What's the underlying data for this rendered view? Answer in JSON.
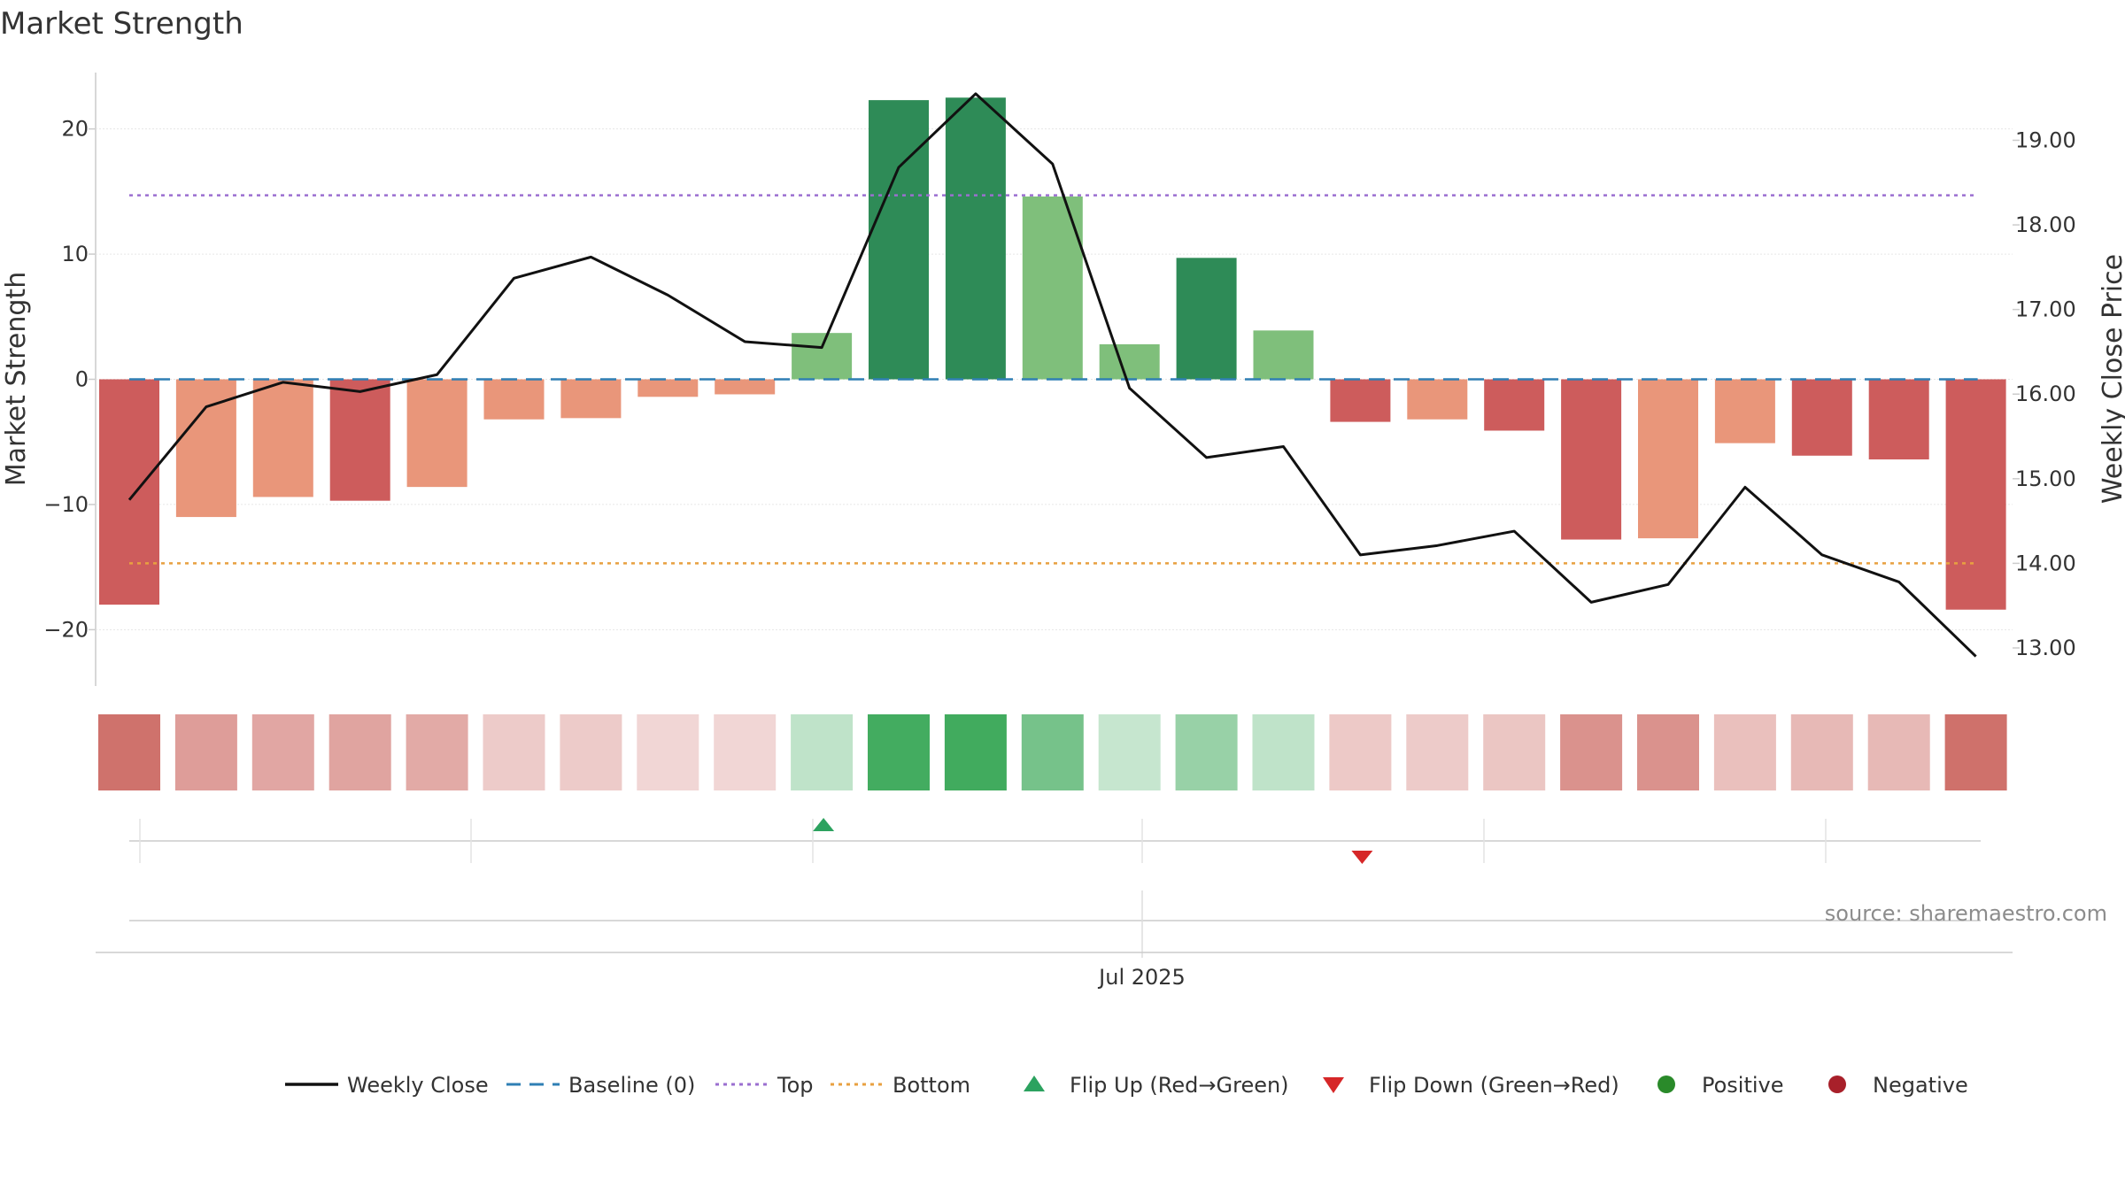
{
  "chart_data": {
    "type": "bar",
    "title": "Market Strength",
    "ylabel_left": "Market Strength",
    "ylabel_right": "Weekly Close Price",
    "source": "source: sharemaestro.com",
    "x_tick_label": "Jul 2025",
    "ylim_left": [
      -24.5,
      24.5
    ],
    "ylim_right": [
      12.55,
      19.8
    ],
    "left_ticks": [
      20,
      10,
      0,
      -10,
      -20
    ],
    "left_tick_labels": [
      "20",
      "10",
      "0",
      "−10",
      "−20"
    ],
    "right_ticks": [
      19,
      18,
      17,
      16,
      15,
      14,
      13
    ],
    "right_tick_labels": [
      "19.00",
      "18.00",
      "17.00",
      "16.00",
      "15.00",
      "14.00",
      "13.00"
    ],
    "top_level": 14.7,
    "bottom_level": -14.7,
    "baseline": 0,
    "strength_values": [
      -18.0,
      -11.0,
      -9.4,
      -9.7,
      -8.6,
      -3.2,
      -3.1,
      -1.4,
      -1.2,
      3.7,
      22.3,
      22.5,
      14.6,
      2.8,
      9.7,
      3.9,
      -3.4,
      -3.2,
      -4.1,
      -12.8,
      -12.7,
      -5.1,
      -6.1,
      -6.4,
      -18.4
    ],
    "close_prices": [
      14.75,
      15.85,
      16.14,
      16.03,
      16.23,
      17.37,
      17.62,
      17.17,
      16.62,
      16.55,
      18.68,
      19.55,
      18.72,
      16.07,
      15.25,
      15.38,
      14.1,
      14.21,
      14.38,
      13.54,
      13.75,
      14.9,
      14.1,
      13.78,
      12.9
    ],
    "flip_up_index": 9,
    "flip_down_index": 16,
    "legend": [
      {
        "type": "line",
        "label": "Weekly Close",
        "color": "#111111"
      },
      {
        "type": "dash",
        "label": "Baseline (0)",
        "color": "#2f7fb4"
      },
      {
        "type": "dot",
        "label": "Top",
        "color": "#9b6fd0"
      },
      {
        "type": "dot",
        "label": "Bottom",
        "color": "#e8a040"
      },
      {
        "type": "tri-up",
        "label": "Flip Up (Red→Green)",
        "color": "#2ca25f"
      },
      {
        "type": "tri-down",
        "label": "Flip Down (Green→Red)",
        "color": "#d62728"
      },
      {
        "type": "circle",
        "label": "Positive",
        "color": "#2a8a2a"
      },
      {
        "type": "circle",
        "label": "Negative",
        "color": "#a8202a"
      }
    ],
    "colors": {
      "strong_negative": "#cd5c5c",
      "weak_negative": "#e9967a",
      "strong_positive": "#2e8b57",
      "weak_positive": "#7fbf7b",
      "close_line": "#111111",
      "baseline": "#2f7fb4",
      "top": "#9b6fd0",
      "bottom": "#e8a040",
      "flip_up": "#2ca25f",
      "flip_down": "#d62728"
    }
  }
}
